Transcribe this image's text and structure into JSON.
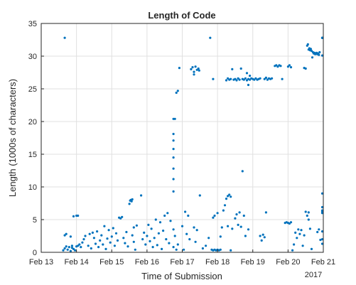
{
  "chart_data": {
    "type": "scatter",
    "title": "Length of Code",
    "xlabel": "Time of Submission",
    "ylabel": "Length (1000s of characters)",
    "x_secondary_label": "2017",
    "x_ticks": [
      "Feb 13",
      "Feb 14",
      "Feb 15",
      "Feb 16",
      "Feb 17",
      "Feb 18",
      "Feb 19",
      "Feb 20",
      "Feb 21"
    ],
    "y_ticks": [
      "0",
      "5",
      "10",
      "15",
      "20",
      "25",
      "30",
      "35"
    ],
    "xlim": [
      "2017-02-13",
      "2017-02-21"
    ],
    "ylim": [
      0,
      35
    ],
    "grid": true,
    "marker_color": "#0072BD",
    "series": [
      {
        "points": [
          [
            "2017-02-13 16:00",
            32.8
          ],
          [
            "2017-02-13 15:00",
            0.3
          ],
          [
            "2017-02-13 16:00",
            0.6
          ],
          [
            "2017-02-13 17:00",
            0.9
          ],
          [
            "2017-02-13 18:00",
            0.4
          ],
          [
            "2017-02-13 19:00",
            0.8
          ],
          [
            "2017-02-13 20:00",
            0.2
          ],
          [
            "2017-02-13 21:00",
            1.0
          ],
          [
            "2017-02-13 22:00",
            0.5
          ],
          [
            "2017-02-13 16:00",
            2.6
          ],
          [
            "2017-02-13 17:00",
            2.8
          ],
          [
            "2017-02-13 20:00",
            2.4
          ],
          [
            "2017-02-13 21:00",
            0.7
          ],
          [
            "2017-02-13 23:00",
            0.3
          ],
          [
            "2017-02-14 00:00",
            0.9
          ],
          [
            "2017-02-14 01:00",
            1.0
          ],
          [
            "2017-02-14 02:00",
            1.2
          ],
          [
            "2017-02-14 03:00",
            0.8
          ],
          [
            "2017-02-14 04:00",
            1.5
          ],
          [
            "2017-02-13 22:00",
            5.5
          ],
          [
            "2017-02-14 00:00",
            5.6
          ],
          [
            "2017-02-14 01:00",
            5.6
          ],
          [
            "2017-02-14 05:00",
            2.0
          ],
          [
            "2017-02-14 06:00",
            2.5
          ],
          [
            "2017-02-14 08:00",
            1.0
          ],
          [
            "2017-02-14 09:00",
            2.8
          ],
          [
            "2017-02-14 10:00",
            0.6
          ],
          [
            "2017-02-14 11:00",
            3.0
          ],
          [
            "2017-02-14 12:00",
            2.2
          ],
          [
            "2017-02-14 13:00",
            1.3
          ],
          [
            "2017-02-14 14:00",
            3.2
          ],
          [
            "2017-02-14 15:00",
            0.8
          ],
          [
            "2017-02-14 16:00",
            1.8
          ],
          [
            "2017-02-14 17:00",
            2.6
          ],
          [
            "2017-02-14 18:00",
            1.2
          ],
          [
            "2017-02-14 19:00",
            4.0
          ],
          [
            "2017-02-14 20:00",
            0.5
          ],
          [
            "2017-02-14 21:00",
            2.1
          ],
          [
            "2017-02-14 22:00",
            3.4
          ],
          [
            "2017-02-14 23:00",
            1.5
          ],
          [
            "2017-02-15 00:00",
            2.4
          ],
          [
            "2017-02-15 01:00",
            3.7
          ],
          [
            "2017-02-15 02:00",
            1.0
          ],
          [
            "2017-02-15 03:00",
            2.9
          ],
          [
            "2017-02-15 04:00",
            1.8
          ],
          [
            "2017-02-15 05:00",
            5.3
          ],
          [
            "2017-02-15 06:00",
            5.2
          ],
          [
            "2017-02-15 07:00",
            5.4
          ],
          [
            "2017-02-15 08:00",
            2.2
          ],
          [
            "2017-02-15 09:00",
            1.4
          ],
          [
            "2017-02-15 10:00",
            3.1
          ],
          [
            "2017-02-15 11:00",
            0.9
          ],
          [
            "2017-02-15 12:00",
            7.4
          ],
          [
            "2017-02-15 12:30",
            7.9
          ],
          [
            "2017-02-15 13:00",
            8.0
          ],
          [
            "2017-02-15 13:30",
            7.8
          ],
          [
            "2017-02-15 14:00",
            8.1
          ],
          [
            "2017-02-15 14:00",
            2.6
          ],
          [
            "2017-02-15 15:00",
            3.8
          ],
          [
            "2017-02-15 15:00",
            1.6
          ],
          [
            "2017-02-15 16:00",
            0.4
          ],
          [
            "2017-02-15 17:00",
            4.1
          ],
          [
            "2017-02-15 20:00",
            8.7
          ],
          [
            "2017-02-15 21:00",
            2.0
          ],
          [
            "2017-02-15 22:00",
            3.0
          ],
          [
            "2017-02-15 23:00",
            1.2
          ],
          [
            "2017-02-16 00:00",
            2.5
          ],
          [
            "2017-02-16 01:00",
            4.2
          ],
          [
            "2017-02-16 02:00",
            1.7
          ],
          [
            "2017-02-16 03:00",
            3.6
          ],
          [
            "2017-02-16 04:00",
            0.8
          ],
          [
            "2017-02-16 05:00",
            2.2
          ],
          [
            "2017-02-16 06:00",
            5.0
          ],
          [
            "2017-02-16 07:00",
            1.1
          ],
          [
            "2017-02-16 08:00",
            2.9
          ],
          [
            "2017-02-16 09:00",
            4.6
          ],
          [
            "2017-02-16 10:00",
            0.5
          ],
          [
            "2017-02-16 11:00",
            3.3
          ],
          [
            "2017-02-16 12:00",
            5.6
          ],
          [
            "2017-02-16 13:00",
            2.0
          ],
          [
            "2017-02-16 14:00",
            6.0
          ],
          [
            "2017-02-16 15:00",
            1.4
          ],
          [
            "2017-02-16 16:00",
            4.8
          ],
          [
            "2017-02-16 18:00",
            3.5
          ],
          [
            "2017-02-16 18:00",
            9.3
          ],
          [
            "2017-02-16 18:00",
            11.2
          ],
          [
            "2017-02-16 18:00",
            12.8
          ],
          [
            "2017-02-16 18:00",
            14.5
          ],
          [
            "2017-02-16 18:00",
            15.8
          ],
          [
            "2017-02-16 18:00",
            17.1
          ],
          [
            "2017-02-16 18:00",
            18.1
          ],
          [
            "2017-02-16 18:00",
            20.4
          ],
          [
            "2017-02-16 19:00",
            20.4
          ],
          [
            "2017-02-16 20:00",
            24.4
          ],
          [
            "2017-02-16 21:00",
            24.7
          ],
          [
            "2017-02-16 22:00",
            28.2
          ],
          [
            "2017-02-16 18:00",
            0.8
          ],
          [
            "2017-02-16 19:00",
            2.5
          ],
          [
            "2017-02-16 20:00",
            0.4
          ],
          [
            "2017-02-16 21:00",
            1.2
          ],
          [
            "2017-02-17 00:00",
            4.0
          ],
          [
            "2017-02-17 01:00",
            0.4
          ],
          [
            "2017-02-17 02:00",
            6.2
          ],
          [
            "2017-02-17 03:00",
            2.8
          ],
          [
            "2017-02-17 04:00",
            5.6
          ],
          [
            "2017-02-17 05:00",
            2.0
          ],
          [
            "2017-02-17 06:00",
            28.0
          ],
          [
            "2017-02-17 07:00",
            28.3
          ],
          [
            "2017-02-17 08:00",
            27.6
          ],
          [
            "2017-02-17 09:00",
            28.4
          ],
          [
            "2017-02-17 10:00",
            27.9
          ],
          [
            "2017-02-17 11:00",
            28.1
          ],
          [
            "2017-02-17 11:30",
            27.8
          ],
          [
            "2017-02-17 08:00",
            27.2
          ],
          [
            "2017-02-17 08:00",
            3.8
          ],
          [
            "2017-02-17 09:00",
            1.6
          ],
          [
            "2017-02-17 10:00",
            3.4
          ],
          [
            "2017-02-17 12:00",
            8.7
          ],
          [
            "2017-02-17 14:00",
            0.6
          ],
          [
            "2017-02-17 16:00",
            1.0
          ],
          [
            "2017-02-17 18:00",
            2.2
          ],
          [
            "2017-02-17 19:00",
            32.8
          ],
          [
            "2017-02-17 21:00",
            26.5
          ],
          [
            "2017-02-17 20:00",
            0.4
          ],
          [
            "2017-02-17 21:00",
            0.3
          ],
          [
            "2017-02-17 22:00",
            0.4
          ],
          [
            "2017-02-17 23:00",
            0.3
          ],
          [
            "2017-02-18 00:00",
            0.4
          ],
          [
            "2017-02-18 01:00",
            0.3
          ],
          [
            "2017-02-18 02:00",
            0.4
          ],
          [
            "2017-02-17 21:00",
            5.3
          ],
          [
            "2017-02-17 22:00",
            5.6
          ],
          [
            "2017-02-18 00:00",
            6.0
          ],
          [
            "2017-02-18 02:00",
            2.4
          ],
          [
            "2017-02-18 03:00",
            3.8
          ],
          [
            "2017-02-18 04:00",
            6.4
          ],
          [
            "2017-02-18 05:00",
            7.2
          ],
          [
            "2017-02-18 06:00",
            8.2
          ],
          [
            "2017-02-18 07:00",
            8.6
          ],
          [
            "2017-02-18 08:00",
            8.8
          ],
          [
            "2017-02-18 09:00",
            8.5
          ],
          [
            "2017-02-18 07:00",
            4.0
          ],
          [
            "2017-02-18 09:00",
            0.3
          ],
          [
            "2017-02-18 10:00",
            3.6
          ],
          [
            "2017-02-18 06:00",
            26.3
          ],
          [
            "2017-02-18 07:00",
            26.6
          ],
          [
            "2017-02-18 08:00",
            26.4
          ],
          [
            "2017-02-18 09:00",
            26.5
          ],
          [
            "2017-02-18 10:00",
            28.0
          ],
          [
            "2017-02-18 11:00",
            26.4
          ],
          [
            "2017-02-18 12:00",
            26.5
          ],
          [
            "2017-02-18 13:00",
            26.3
          ],
          [
            "2017-02-18 14:00",
            26.6
          ],
          [
            "2017-02-18 15:00",
            26.4
          ],
          [
            "2017-02-18 16:00",
            28.1
          ],
          [
            "2017-02-18 17:00",
            26.5
          ],
          [
            "2017-02-18 18:00",
            26.4
          ],
          [
            "2017-02-18 19:00",
            26.6
          ],
          [
            "2017-02-18 20:00",
            26.3
          ],
          [
            "2017-02-18 21:00",
            26.5
          ],
          [
            "2017-02-18 22:00",
            26.4
          ],
          [
            "2017-02-18 23:00",
            26.6
          ],
          [
            "2017-02-19 00:00",
            26.5
          ],
          [
            "2017-02-19 01:00",
            26.4
          ],
          [
            "2017-02-19 02:00",
            26.6
          ],
          [
            "2017-02-19 03:00",
            26.4
          ],
          [
            "2017-02-19 04:00",
            26.5
          ],
          [
            "2017-02-19 05:00",
            26.6
          ],
          [
            "2017-02-18 12:00",
            5.2
          ],
          [
            "2017-02-18 13:00",
            5.8
          ],
          [
            "2017-02-18 14:00",
            4.2
          ],
          [
            "2017-02-18 15:00",
            6.1
          ],
          [
            "2017-02-18 16:00",
            3.9
          ],
          [
            "2017-02-18 18:00",
            5.6
          ],
          [
            "2017-02-18 19:00",
            2.5
          ],
          [
            "2017-02-18 17:00",
            12.4
          ],
          [
            "2017-02-18 21:00",
            3.5
          ],
          [
            "2017-02-18 20:00",
            27.4
          ],
          [
            "2017-02-18 21:00",
            25.6
          ],
          [
            "2017-02-18 22:00",
            27.0
          ],
          [
            "2017-02-19 05:00",
            2.5
          ],
          [
            "2017-02-19 06:00",
            1.8
          ],
          [
            "2017-02-19 07:00",
            2.7
          ],
          [
            "2017-02-19 08:00",
            2.3
          ],
          [
            "2017-02-19 09:00",
            6.1
          ],
          [
            "2017-02-19 08:00",
            26.5
          ],
          [
            "2017-02-19 09:00",
            26.7
          ],
          [
            "2017-02-19 10:00",
            26.4
          ],
          [
            "2017-02-19 11:00",
            26.6
          ],
          [
            "2017-02-19 12:00",
            26.5
          ],
          [
            "2017-02-19 13:00",
            26.6
          ],
          [
            "2017-02-19 15:00",
            28.5
          ],
          [
            "2017-02-19 16:00",
            28.6
          ],
          [
            "2017-02-19 17:00",
            28.4
          ],
          [
            "2017-02-19 18:00",
            28.6
          ],
          [
            "2017-02-19 19:00",
            28.5
          ],
          [
            "2017-02-19 20:00",
            26.5
          ],
          [
            "2017-02-20 00:00",
            28.4
          ],
          [
            "2017-02-20 01:00",
            28.6
          ],
          [
            "2017-02-20 02:00",
            28.3
          ],
          [
            "2017-02-19 22:00",
            4.5
          ],
          [
            "2017-02-19 23:00",
            4.6
          ],
          [
            "2017-02-20 00:00",
            4.5
          ],
          [
            "2017-02-20 01:00",
            4.4
          ],
          [
            "2017-02-20 02:00",
            4.6
          ],
          [
            "2017-02-20 03:00",
            0.3
          ],
          [
            "2017-02-20 04:00",
            1.2
          ],
          [
            "2017-02-20 05:00",
            3.0
          ],
          [
            "2017-02-20 06:00",
            2.2
          ],
          [
            "2017-02-20 07:00",
            3.5
          ],
          [
            "2017-02-20 08:00",
            2.8
          ],
          [
            "2017-02-20 09:00",
            3.4
          ],
          [
            "2017-02-20 10:00",
            1.0
          ],
          [
            "2017-02-20 11:00",
            2.6
          ],
          [
            "2017-02-20 12:00",
            6.2
          ],
          [
            "2017-02-20 11:00",
            28.2
          ],
          [
            "2017-02-20 12:00",
            28.1
          ],
          [
            "2017-02-20 13:00",
            31.6
          ],
          [
            "2017-02-20 13:30",
            31.8
          ],
          [
            "2017-02-20 14:00",
            31.0
          ],
          [
            "2017-02-20 14:30",
            31.2
          ],
          [
            "2017-02-20 15:00",
            30.9
          ],
          [
            "2017-02-20 15:30",
            31.1
          ],
          [
            "2017-02-20 16:00",
            30.8
          ],
          [
            "2017-02-20 16:30",
            29.8
          ],
          [
            "2017-02-20 17:00",
            30.6
          ],
          [
            "2017-02-20 17:30",
            30.4
          ],
          [
            "2017-02-20 18:00",
            30.5
          ],
          [
            "2017-02-20 18:30",
            30.3
          ],
          [
            "2017-02-20 19:00",
            30.4
          ],
          [
            "2017-02-20 19:30",
            30.5
          ],
          [
            "2017-02-20 20:00",
            30.3
          ],
          [
            "2017-02-20 20:30",
            30.4
          ],
          [
            "2017-02-20 21:00",
            30.2
          ],
          [
            "2017-02-20 21:30",
            30.6
          ],
          [
            "2017-02-20 13:00",
            5.6
          ],
          [
            "2017-02-20 14:00",
            6.1
          ],
          [
            "2017-02-20 14:00",
            5.0
          ],
          [
            "2017-02-20 15:00",
            3.6
          ],
          [
            "2017-02-20 16:00",
            0.5
          ],
          [
            "2017-02-20 20:00",
            3.1
          ],
          [
            "2017-02-20 21:00",
            3.5
          ],
          [
            "2017-02-20 22:00",
            1.9
          ],
          [
            "2017-02-21 00:00",
            30.1
          ],
          [
            "2017-02-21 01:00",
            9.0
          ],
          [
            "2017-02-21 02:00",
            6.9
          ],
          [
            "2017-02-21 02:00",
            3.2
          ],
          [
            "2017-02-21 03:00",
            2.0
          ],
          [
            "2017-02-21 04:00",
            32.8
          ],
          [
            "2017-02-21 05:00",
            32.8
          ],
          [
            "2017-02-21 06:00",
            32.8
          ],
          [
            "2017-02-21 07:00",
            32.8
          ],
          [
            "2017-02-21 05:00",
            6.0
          ],
          [
            "2017-02-21 06:00",
            6.4
          ],
          [
            "2017-02-21 07:00",
            6.2
          ],
          [
            "2017-02-21 06:00",
            1.3
          ]
        ]
      }
    ]
  }
}
